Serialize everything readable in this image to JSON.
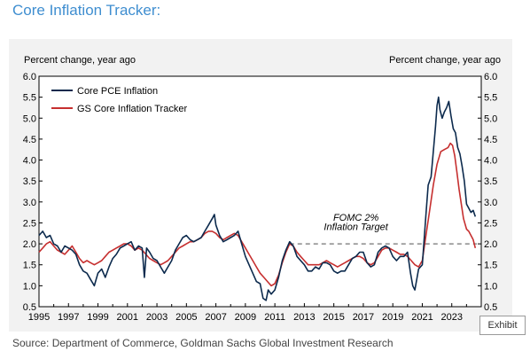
{
  "page": {
    "title": "Core Inflation Tracker:",
    "exhibit_label": "Exhibit",
    "source": "Source: Department of Commerce, Goldman Sachs Global Investment Research"
  },
  "colors": {
    "title": "#3f8ed0",
    "core_pce": "#0c2a4d",
    "gs_tracker": "#c62f2f",
    "target_line": "#8a8a8a"
  },
  "chart_data": {
    "type": "line",
    "ylabel_left": "Percent change, year ago",
    "ylabel_right": "Percent change, year ago",
    "ylim": [
      0.5,
      6.0
    ],
    "xlim": [
      1995,
      2025
    ],
    "y_ticks": [
      "0.5",
      "1.0",
      "1.5",
      "2.0",
      "2.5",
      "3.0",
      "3.5",
      "4.0",
      "4.5",
      "5.0",
      "5.5",
      "6.0"
    ],
    "x_ticks": [
      "1995",
      "1997",
      "1999",
      "2001",
      "2003",
      "2005",
      "2007",
      "2009",
      "2011",
      "2013",
      "2015",
      "2017",
      "2019",
      "2021",
      "2023"
    ],
    "legend_position": "top-left",
    "annotation": {
      "line1": "FOMC 2%",
      "line2": "Inflation Target",
      "target_value": 2.0,
      "x_start": 2012.0,
      "x_end": 2024.7
    },
    "series": [
      {
        "name": "Core PCE Inflation",
        "points": [
          [
            1995.0,
            2.2
          ],
          [
            1995.25,
            2.3
          ],
          [
            1995.5,
            2.15
          ],
          [
            1995.75,
            2.2
          ],
          [
            1996.0,
            2.0
          ],
          [
            1996.25,
            1.95
          ],
          [
            1996.5,
            1.8
          ],
          [
            1996.75,
            1.95
          ],
          [
            1997.0,
            1.9
          ],
          [
            1997.25,
            1.85
          ],
          [
            1997.5,
            1.75
          ],
          [
            1997.75,
            1.5
          ],
          [
            1998.0,
            1.35
          ],
          [
            1998.25,
            1.3
          ],
          [
            1998.5,
            1.15
          ],
          [
            1998.75,
            1.0
          ],
          [
            1999.0,
            1.3
          ],
          [
            1999.25,
            1.4
          ],
          [
            1999.5,
            1.2
          ],
          [
            1999.75,
            1.45
          ],
          [
            2000.0,
            1.65
          ],
          [
            2000.25,
            1.75
          ],
          [
            2000.5,
            1.9
          ],
          [
            2000.75,
            1.95
          ],
          [
            2001.0,
            2.0
          ],
          [
            2001.25,
            2.05
          ],
          [
            2001.5,
            1.85
          ],
          [
            2001.75,
            1.95
          ],
          [
            2002.0,
            1.9
          ],
          [
            2002.15,
            1.2
          ],
          [
            2002.3,
            1.9
          ],
          [
            2002.5,
            1.8
          ],
          [
            2002.75,
            1.65
          ],
          [
            2003.0,
            1.6
          ],
          [
            2003.25,
            1.45
          ],
          [
            2003.5,
            1.3
          ],
          [
            2003.75,
            1.45
          ],
          [
            2004.0,
            1.6
          ],
          [
            2004.25,
            1.85
          ],
          [
            2004.5,
            2.0
          ],
          [
            2004.75,
            2.15
          ],
          [
            2005.0,
            2.2
          ],
          [
            2005.25,
            2.1
          ],
          [
            2005.5,
            2.05
          ],
          [
            2005.75,
            2.1
          ],
          [
            2006.0,
            2.15
          ],
          [
            2006.25,
            2.3
          ],
          [
            2006.5,
            2.45
          ],
          [
            2006.75,
            2.6
          ],
          [
            2006.9,
            2.7
          ],
          [
            2007.0,
            2.45
          ],
          [
            2007.25,
            2.2
          ],
          [
            2007.5,
            2.05
          ],
          [
            2007.75,
            2.1
          ],
          [
            2008.0,
            2.15
          ],
          [
            2008.25,
            2.2
          ],
          [
            2008.5,
            2.3
          ],
          [
            2008.75,
            2.0
          ],
          [
            2009.0,
            1.7
          ],
          [
            2009.25,
            1.5
          ],
          [
            2009.5,
            1.3
          ],
          [
            2009.75,
            1.1
          ],
          [
            2010.0,
            1.05
          ],
          [
            2010.2,
            0.7
          ],
          [
            2010.4,
            0.65
          ],
          [
            2010.55,
            0.9
          ],
          [
            2010.75,
            0.8
          ],
          [
            2011.0,
            0.9
          ],
          [
            2011.25,
            1.2
          ],
          [
            2011.5,
            1.6
          ],
          [
            2011.75,
            1.85
          ],
          [
            2012.0,
            2.05
          ],
          [
            2012.25,
            1.95
          ],
          [
            2012.5,
            1.7
          ],
          [
            2012.75,
            1.6
          ],
          [
            2013.0,
            1.5
          ],
          [
            2013.25,
            1.35
          ],
          [
            2013.5,
            1.35
          ],
          [
            2013.75,
            1.45
          ],
          [
            2014.0,
            1.4
          ],
          [
            2014.25,
            1.55
          ],
          [
            2014.5,
            1.55
          ],
          [
            2014.75,
            1.5
          ],
          [
            2015.0,
            1.35
          ],
          [
            2015.25,
            1.3
          ],
          [
            2015.5,
            1.35
          ],
          [
            2015.75,
            1.35
          ],
          [
            2016.0,
            1.5
          ],
          [
            2016.25,
            1.65
          ],
          [
            2016.5,
            1.7
          ],
          [
            2016.75,
            1.8
          ],
          [
            2017.0,
            1.8
          ],
          [
            2017.25,
            1.55
          ],
          [
            2017.5,
            1.45
          ],
          [
            2017.75,
            1.5
          ],
          [
            2018.0,
            1.8
          ],
          [
            2018.25,
            1.9
          ],
          [
            2018.5,
            1.95
          ],
          [
            2018.75,
            1.9
          ],
          [
            2019.0,
            1.7
          ],
          [
            2019.25,
            1.6
          ],
          [
            2019.5,
            1.7
          ],
          [
            2019.75,
            1.7
          ],
          [
            2020.0,
            1.8
          ],
          [
            2020.2,
            1.3
          ],
          [
            2020.35,
            1.0
          ],
          [
            2020.5,
            0.9
          ],
          [
            2020.75,
            1.4
          ],
          [
            2021.0,
            1.5
          ],
          [
            2021.25,
            2.7
          ],
          [
            2021.4,
            3.4
          ],
          [
            2021.6,
            3.6
          ],
          [
            2021.75,
            4.2
          ],
          [
            2021.9,
            4.8
          ],
          [
            2022.0,
            5.3
          ],
          [
            2022.1,
            5.5
          ],
          [
            2022.2,
            5.2
          ],
          [
            2022.35,
            5.0
          ],
          [
            2022.5,
            5.15
          ],
          [
            2022.65,
            5.25
          ],
          [
            2022.8,
            5.4
          ],
          [
            2022.95,
            5.05
          ],
          [
            2023.1,
            4.75
          ],
          [
            2023.25,
            4.65
          ],
          [
            2023.4,
            4.3
          ],
          [
            2023.55,
            4.15
          ],
          [
            2023.7,
            3.85
          ],
          [
            2023.85,
            3.5
          ],
          [
            2024.0,
            2.95
          ],
          [
            2024.15,
            2.85
          ],
          [
            2024.3,
            2.75
          ],
          [
            2024.45,
            2.8
          ],
          [
            2024.6,
            2.65
          ]
        ]
      },
      {
        "name": "GS Core Inflation Tracker",
        "points": [
          [
            1995.0,
            1.8
          ],
          [
            1995.25,
            1.9
          ],
          [
            1995.5,
            2.0
          ],
          [
            1995.75,
            2.05
          ],
          [
            1996.0,
            1.95
          ],
          [
            1996.25,
            1.85
          ],
          [
            1996.5,
            1.8
          ],
          [
            1996.75,
            1.75
          ],
          [
            1997.0,
            1.85
          ],
          [
            1997.25,
            1.95
          ],
          [
            1997.5,
            1.8
          ],
          [
            1997.75,
            1.65
          ],
          [
            1998.0,
            1.55
          ],
          [
            1998.25,
            1.6
          ],
          [
            1998.5,
            1.55
          ],
          [
            1998.75,
            1.5
          ],
          [
            1999.0,
            1.55
          ],
          [
            1999.25,
            1.6
          ],
          [
            1999.5,
            1.7
          ],
          [
            1999.75,
            1.8
          ],
          [
            2000.0,
            1.85
          ],
          [
            2000.25,
            1.9
          ],
          [
            2000.5,
            1.95
          ],
          [
            2000.75,
            2.0
          ],
          [
            2001.0,
            2.0
          ],
          [
            2001.25,
            1.95
          ],
          [
            2001.5,
            1.85
          ],
          [
            2001.75,
            1.9
          ],
          [
            2002.0,
            1.85
          ],
          [
            2002.25,
            1.75
          ],
          [
            2002.5,
            1.65
          ],
          [
            2002.75,
            1.6
          ],
          [
            2003.0,
            1.55
          ],
          [
            2003.25,
            1.5
          ],
          [
            2003.5,
            1.55
          ],
          [
            2003.75,
            1.6
          ],
          [
            2004.0,
            1.7
          ],
          [
            2004.25,
            1.8
          ],
          [
            2004.5,
            1.9
          ],
          [
            2004.75,
            1.95
          ],
          [
            2005.0,
            2.0
          ],
          [
            2005.25,
            2.05
          ],
          [
            2005.5,
            2.05
          ],
          [
            2005.75,
            2.1
          ],
          [
            2006.0,
            2.15
          ],
          [
            2006.25,
            2.25
          ],
          [
            2006.5,
            2.3
          ],
          [
            2006.75,
            2.3
          ],
          [
            2007.0,
            2.25
          ],
          [
            2007.25,
            2.15
          ],
          [
            2007.5,
            2.1
          ],
          [
            2007.75,
            2.15
          ],
          [
            2008.0,
            2.2
          ],
          [
            2008.25,
            2.25
          ],
          [
            2008.5,
            2.2
          ],
          [
            2008.75,
            2.05
          ],
          [
            2009.0,
            1.9
          ],
          [
            2009.25,
            1.75
          ],
          [
            2009.5,
            1.6
          ],
          [
            2009.75,
            1.45
          ],
          [
            2010.0,
            1.3
          ],
          [
            2010.25,
            1.2
          ],
          [
            2010.5,
            1.1
          ],
          [
            2010.75,
            1.0
          ],
          [
            2011.0,
            1.05
          ],
          [
            2011.25,
            1.25
          ],
          [
            2011.5,
            1.55
          ],
          [
            2011.75,
            1.8
          ],
          [
            2012.0,
            2.0
          ],
          [
            2012.25,
            1.95
          ],
          [
            2012.5,
            1.8
          ],
          [
            2012.75,
            1.7
          ],
          [
            2013.0,
            1.6
          ],
          [
            2013.25,
            1.5
          ],
          [
            2013.5,
            1.5
          ],
          [
            2013.75,
            1.5
          ],
          [
            2014.0,
            1.5
          ],
          [
            2014.25,
            1.55
          ],
          [
            2014.5,
            1.6
          ],
          [
            2014.75,
            1.55
          ],
          [
            2015.0,
            1.5
          ],
          [
            2015.25,
            1.45
          ],
          [
            2015.5,
            1.5
          ],
          [
            2015.75,
            1.55
          ],
          [
            2016.0,
            1.6
          ],
          [
            2016.25,
            1.65
          ],
          [
            2016.5,
            1.7
          ],
          [
            2016.75,
            1.7
          ],
          [
            2017.0,
            1.65
          ],
          [
            2017.25,
            1.55
          ],
          [
            2017.5,
            1.5
          ],
          [
            2017.75,
            1.55
          ],
          [
            2018.0,
            1.7
          ],
          [
            2018.25,
            1.85
          ],
          [
            2018.5,
            1.9
          ],
          [
            2018.75,
            1.9
          ],
          [
            2019.0,
            1.85
          ],
          [
            2019.25,
            1.8
          ],
          [
            2019.5,
            1.75
          ],
          [
            2019.75,
            1.75
          ],
          [
            2020.0,
            1.7
          ],
          [
            2020.25,
            1.6
          ],
          [
            2020.5,
            1.5
          ],
          [
            2020.75,
            1.45
          ],
          [
            2021.0,
            1.6
          ],
          [
            2021.25,
            2.2
          ],
          [
            2021.5,
            2.8
          ],
          [
            2021.75,
            3.4
          ],
          [
            2022.0,
            3.9
          ],
          [
            2022.25,
            4.2
          ],
          [
            2022.5,
            4.25
          ],
          [
            2022.75,
            4.3
          ],
          [
            2022.9,
            4.4
          ],
          [
            2023.05,
            4.35
          ],
          [
            2023.2,
            4.1
          ],
          [
            2023.35,
            3.7
          ],
          [
            2023.5,
            3.3
          ],
          [
            2023.65,
            2.95
          ],
          [
            2023.8,
            2.6
          ],
          [
            2024.0,
            2.35
          ],
          [
            2024.15,
            2.3
          ],
          [
            2024.3,
            2.2
          ],
          [
            2024.45,
            2.1
          ],
          [
            2024.6,
            1.9
          ]
        ]
      }
    ]
  }
}
